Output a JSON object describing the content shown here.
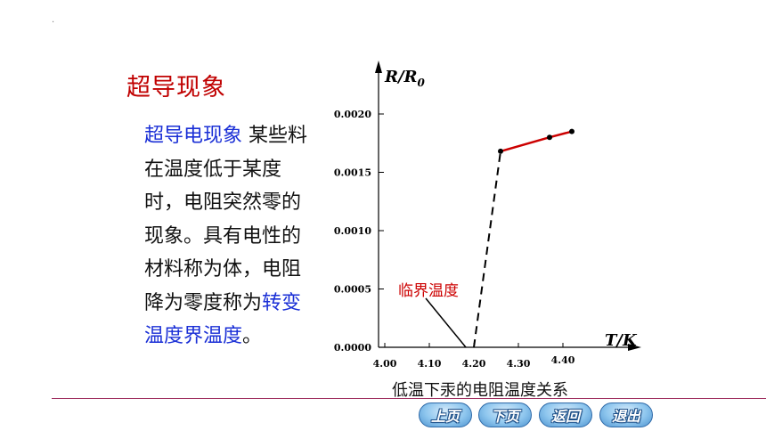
{
  "slide": {
    "title": "超导现象",
    "body_highlight": "超导电现象",
    "body_text": " 某些料在温度低于某度时，电阻突然零的现象。具有电性的材料称为体，电阻降为零度称为",
    "body_highlight2": "转变温度界温度",
    "body_end": "。"
  },
  "chart_data": {
    "type": "line",
    "ylabel": "R/R",
    "ylabel_sub": "0",
    "xlabel": "T/K",
    "x_ticks": [
      "4.00",
      "4.10",
      "4.20",
      "4.30",
      "4.40"
    ],
    "y_ticks": [
      "0.0000",
      "0.0005",
      "0.0010",
      "0.0015",
      "0.0020"
    ],
    "xlim": [
      4.0,
      4.5
    ],
    "ylim": [
      0,
      0.0022
    ],
    "series": [
      {
        "x": [
          4.26,
          4.37,
          4.42
        ],
        "y": [
          0.00168,
          0.0018,
          0.00185
        ],
        "style": "solid",
        "color": "#cc0000"
      },
      {
        "x": [
          4.2,
          4.26
        ],
        "y": [
          0.0,
          0.00168
        ],
        "style": "dashed",
        "color": "#000000"
      }
    ],
    "points": {
      "x": [
        4.26,
        4.37,
        4.42
      ],
      "y": [
        0.00168,
        0.0018,
        0.00185
      ]
    },
    "annotation": {
      "text": "临界温度",
      "x": 4.2,
      "y": 0.0,
      "color": "#cc0000"
    },
    "caption": "低温下汞的电阻温度关系"
  },
  "nav": {
    "prev": "上页",
    "next": "下页",
    "back": "返回",
    "exit": "退出"
  }
}
